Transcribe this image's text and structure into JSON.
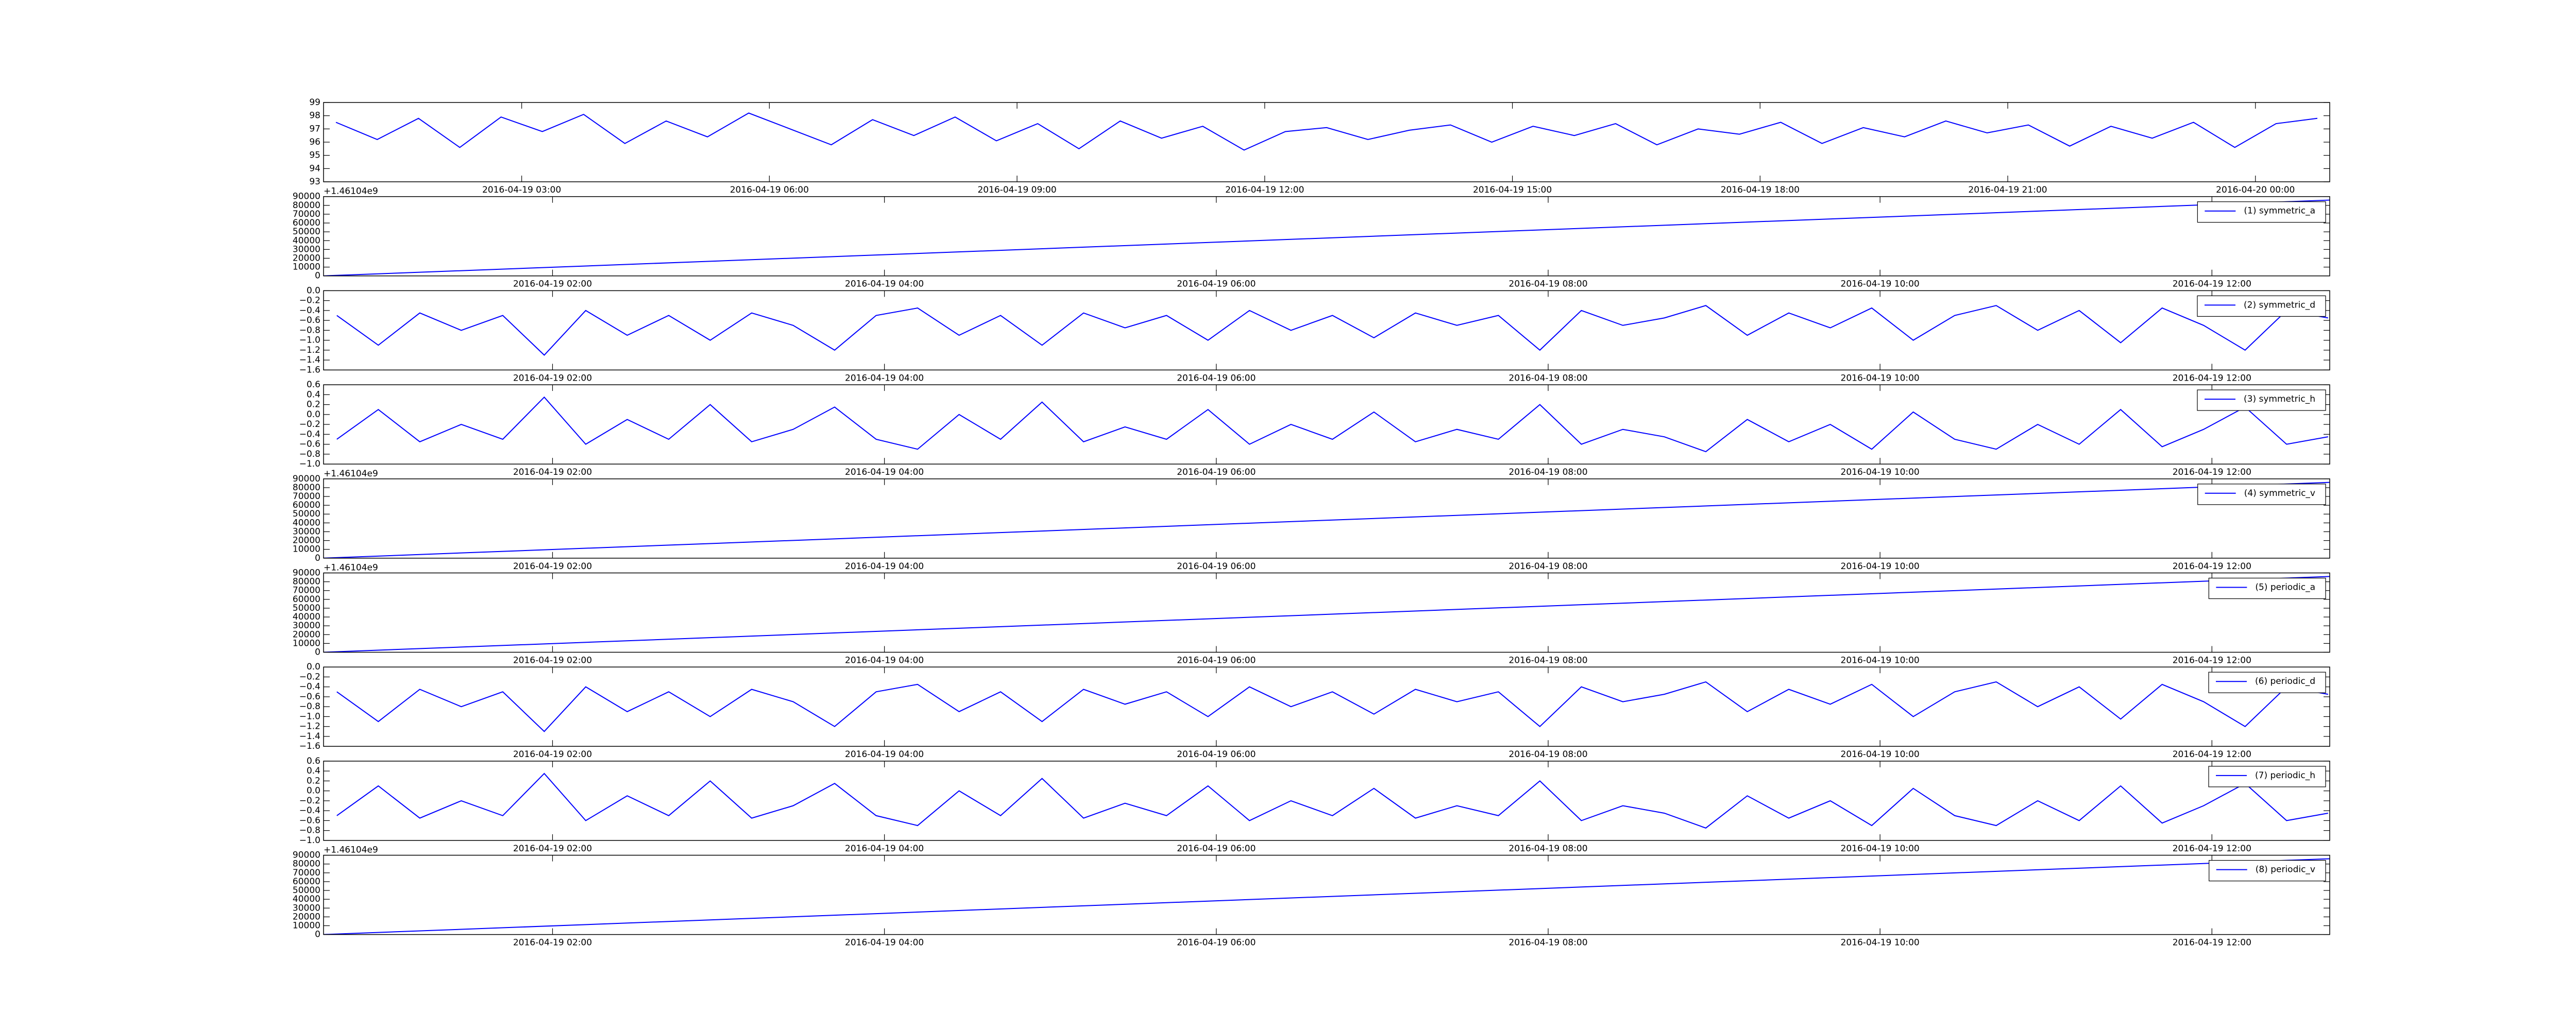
{
  "chart_data": [
    {
      "type": "line",
      "x": [
        0.75,
        1.25,
        1.75,
        2.25,
        2.75,
        3.25,
        3.75,
        4.25,
        4.75,
        5.25,
        5.75,
        6.25,
        6.75,
        7.25,
        7.75,
        8.25,
        8.75,
        9.25,
        9.75,
        10.25,
        10.75,
        11.25,
        11.75,
        12.25,
        12.75,
        13.25,
        13.75,
        14.25,
        14.75,
        15.25,
        15.75,
        16.25,
        16.75,
        17.25,
        17.75,
        18.25,
        18.75,
        19.25,
        19.75,
        20.25,
        20.75,
        21.25,
        21.75,
        22.25,
        22.75,
        23.25,
        23.75,
        24.25,
        24.75
      ],
      "series": [
        {
          "color": "#0000ff",
          "values": [
            97.5,
            96.2,
            97.8,
            95.6,
            97.9,
            96.8,
            98.1,
            95.9,
            97.6,
            96.4,
            98.2,
            97.0,
            95.8,
            97.7,
            96.5,
            97.9,
            96.1,
            97.4,
            95.5,
            97.6,
            96.3,
            97.2,
            95.4,
            96.8,
            97.1,
            96.2,
            96.9,
            97.3,
            96.0,
            97.2,
            96.5,
            97.4,
            95.8,
            97.0,
            96.6,
            97.5,
            95.9,
            97.1,
            96.4,
            97.6,
            96.7,
            97.3,
            95.7,
            97.2,
            96.3,
            97.5,
            95.6,
            97.4,
            97.8
          ]
        }
      ],
      "xlim": [
        0.6,
        24.9
      ],
      "ylim": [
        93,
        99
      ],
      "yticks": [
        93,
        94,
        95,
        96,
        97,
        98,
        99
      ],
      "xticks": [
        {
          "value": 3,
          "label": "2016-04-19 03:00"
        },
        {
          "value": 6,
          "label": "2016-04-19 06:00"
        },
        {
          "value": 9,
          "label": "2016-04-19 09:00"
        },
        {
          "value": 12,
          "label": "2016-04-19 12:00"
        },
        {
          "value": 15,
          "label": "2016-04-19 15:00"
        },
        {
          "value": 18,
          "label": "2016-04-19 18:00"
        },
        {
          "value": 21,
          "label": "2016-04-19 21:00"
        },
        {
          "value": 24,
          "label": "2016-04-20 00:00"
        }
      ]
    },
    {
      "type": "line",
      "offset_text": "+1.46104e9",
      "x": [
        0.62,
        12.71
      ],
      "series": [
        {
          "name": "(1) symmetric_a",
          "color": "#0000ff",
          "values": [
            0,
            86000
          ]
        }
      ],
      "xlim": [
        0.62,
        12.71
      ],
      "ylim": [
        0,
        90000
      ],
      "yticks": [
        0,
        10000,
        20000,
        30000,
        40000,
        50000,
        60000,
        70000,
        80000,
        90000
      ],
      "xticks": [
        {
          "value": 2,
          "label": "2016-04-19 02:00"
        },
        {
          "value": 4,
          "label": "2016-04-19 04:00"
        },
        {
          "value": 6,
          "label": "2016-04-19 06:00"
        },
        {
          "value": 8,
          "label": "2016-04-19 08:00"
        },
        {
          "value": 10,
          "label": "2016-04-19 10:00"
        },
        {
          "value": 12,
          "label": "2016-04-19 12:00"
        }
      ]
    },
    {
      "type": "line",
      "x": [
        0.7,
        0.95,
        1.2,
        1.45,
        1.7,
        1.95,
        2.2,
        2.45,
        2.7,
        2.95,
        3.2,
        3.45,
        3.7,
        3.95,
        4.2,
        4.45,
        4.7,
        4.95,
        5.2,
        5.45,
        5.7,
        5.95,
        6.2,
        6.45,
        6.7,
        6.95,
        7.2,
        7.45,
        7.7,
        7.95,
        8.2,
        8.45,
        8.7,
        8.95,
        9.2,
        9.45,
        9.7,
        9.95,
        10.2,
        10.45,
        10.7,
        10.95,
        11.2,
        11.45,
        11.7,
        11.95,
        12.2,
        12.45,
        12.7
      ],
      "series": [
        {
          "name": "(2) symmetric_d",
          "color": "#0000ff",
          "values": [
            -0.5,
            -1.1,
            -0.45,
            -0.8,
            -0.5,
            -1.3,
            -0.4,
            -0.9,
            -0.5,
            -1.0,
            -0.45,
            -0.7,
            -1.2,
            -0.5,
            -0.35,
            -0.9,
            -0.5,
            -1.1,
            -0.45,
            -0.75,
            -0.5,
            -1.0,
            -0.4,
            -0.8,
            -0.5,
            -0.95,
            -0.45,
            -0.7,
            -0.5,
            -1.2,
            -0.4,
            -0.7,
            -0.55,
            -0.3,
            -0.9,
            -0.45,
            -0.75,
            -0.35,
            -1.0,
            -0.5,
            -0.3,
            -0.8,
            -0.4,
            -1.05,
            -0.35,
            -0.7,
            -1.2,
            -0.4,
            -0.55
          ]
        }
      ],
      "xlim": [
        0.62,
        12.71
      ],
      "ylim": [
        -1.6,
        0
      ],
      "yticks": [
        {
          "value": -1.6,
          "label": "−1.6"
        },
        {
          "value": -1.4,
          "label": "−1.4"
        },
        {
          "value": -1.2,
          "label": "−1.2"
        },
        {
          "value": -1.0,
          "label": "−1.0"
        },
        {
          "value": -0.8,
          "label": "−0.8"
        },
        {
          "value": -0.6,
          "label": "−0.6"
        },
        {
          "value": -0.4,
          "label": "−0.4"
        },
        {
          "value": -0.2,
          "label": "−0.2"
        },
        {
          "value": 0,
          "label": "0.0"
        }
      ],
      "xticks": [
        {
          "value": 2,
          "label": "2016-04-19 02:00"
        },
        {
          "value": 4,
          "label": "2016-04-19 04:00"
        },
        {
          "value": 6,
          "label": "2016-04-19 06:00"
        },
        {
          "value": 8,
          "label": "2016-04-19 08:00"
        },
        {
          "value": 10,
          "label": "2016-04-19 10:00"
        },
        {
          "value": 12,
          "label": "2016-04-19 12:00"
        }
      ]
    },
    {
      "type": "line",
      "x": [
        0.7,
        0.95,
        1.2,
        1.45,
        1.7,
        1.95,
        2.2,
        2.45,
        2.7,
        2.95,
        3.2,
        3.45,
        3.7,
        3.95,
        4.2,
        4.45,
        4.7,
        4.95,
        5.2,
        5.45,
        5.7,
        5.95,
        6.2,
        6.45,
        6.7,
        6.95,
        7.2,
        7.45,
        7.7,
        7.95,
        8.2,
        8.45,
        8.7,
        8.95,
        9.2,
        9.45,
        9.7,
        9.95,
        10.2,
        10.45,
        10.7,
        10.95,
        11.2,
        11.45,
        11.7,
        11.95,
        12.2,
        12.45,
        12.7
      ],
      "series": [
        {
          "name": "(3) symmetric_h",
          "color": "#0000ff",
          "values": [
            -0.5,
            0.1,
            -0.55,
            -0.2,
            -0.5,
            0.35,
            -0.6,
            -0.1,
            -0.5,
            0.2,
            -0.55,
            -0.3,
            0.15,
            -0.5,
            -0.7,
            0.0,
            -0.5,
            0.25,
            -0.55,
            -0.25,
            -0.5,
            0.1,
            -0.6,
            -0.2,
            -0.5,
            0.05,
            -0.55,
            -0.3,
            -0.5,
            0.2,
            -0.6,
            -0.3,
            -0.45,
            -0.75,
            -0.1,
            -0.55,
            -0.2,
            -0.7,
            0.05,
            -0.5,
            -0.7,
            -0.2,
            -0.6,
            0.1,
            -0.65,
            -0.3,
            0.15,
            -0.6,
            -0.45
          ]
        }
      ],
      "xlim": [
        0.62,
        12.71
      ],
      "ylim": [
        -1.0,
        0.6
      ],
      "yticks": [
        {
          "value": -1.0,
          "label": "−1.0"
        },
        {
          "value": -0.8,
          "label": "−0.8"
        },
        {
          "value": -0.6,
          "label": "−0.6"
        },
        {
          "value": -0.4,
          "label": "−0.4"
        },
        {
          "value": -0.2,
          "label": "−0.2"
        },
        {
          "value": 0,
          "label": "0.0"
        },
        0.2,
        0.4,
        0.6
      ],
      "xticks": [
        {
          "value": 2,
          "label": "2016-04-19 02:00"
        },
        {
          "value": 4,
          "label": "2016-04-19 04:00"
        },
        {
          "value": 6,
          "label": "2016-04-19 06:00"
        },
        {
          "value": 8,
          "label": "2016-04-19 08:00"
        },
        {
          "value": 10,
          "label": "2016-04-19 10:00"
        },
        {
          "value": 12,
          "label": "2016-04-19 12:00"
        }
      ]
    },
    {
      "type": "line",
      "offset_text": "+1.46104e9",
      "x": [
        0.62,
        12.71
      ],
      "series": [
        {
          "name": "(4) symmetric_v",
          "color": "#0000ff",
          "values": [
            0,
            86000
          ]
        }
      ],
      "xlim": [
        0.62,
        12.71
      ],
      "ylim": [
        0,
        90000
      ],
      "yticks": [
        0,
        10000,
        20000,
        30000,
        40000,
        50000,
        60000,
        70000,
        80000,
        90000
      ],
      "xticks": [
        {
          "value": 2,
          "label": "2016-04-19 02:00"
        },
        {
          "value": 4,
          "label": "2016-04-19 04:00"
        },
        {
          "value": 6,
          "label": "2016-04-19 06:00"
        },
        {
          "value": 8,
          "label": "2016-04-19 08:00"
        },
        {
          "value": 10,
          "label": "2016-04-19 10:00"
        },
        {
          "value": 12,
          "label": "2016-04-19 12:00"
        }
      ]
    },
    {
      "type": "line",
      "offset_text": "+1.46104e9",
      "x": [
        0.62,
        12.71
      ],
      "series": [
        {
          "name": "(5) periodic_a",
          "color": "#0000ff",
          "values": [
            0,
            86000
          ]
        }
      ],
      "xlim": [
        0.62,
        12.71
      ],
      "ylim": [
        0,
        90000
      ],
      "yticks": [
        0,
        10000,
        20000,
        30000,
        40000,
        50000,
        60000,
        70000,
        80000,
        90000
      ],
      "xticks": [
        {
          "value": 2,
          "label": "2016-04-19 02:00"
        },
        {
          "value": 4,
          "label": "2016-04-19 04:00"
        },
        {
          "value": 6,
          "label": "2016-04-19 06:00"
        },
        {
          "value": 8,
          "label": "2016-04-19 08:00"
        },
        {
          "value": 10,
          "label": "2016-04-19 10:00"
        },
        {
          "value": 12,
          "label": "2016-04-19 12:00"
        }
      ]
    },
    {
      "type": "line",
      "x": [
        0.7,
        0.95,
        1.2,
        1.45,
        1.7,
        1.95,
        2.2,
        2.45,
        2.7,
        2.95,
        3.2,
        3.45,
        3.7,
        3.95,
        4.2,
        4.45,
        4.7,
        4.95,
        5.2,
        5.45,
        5.7,
        5.95,
        6.2,
        6.45,
        6.7,
        6.95,
        7.2,
        7.45,
        7.7,
        7.95,
        8.2,
        8.45,
        8.7,
        8.95,
        9.2,
        9.45,
        9.7,
        9.95,
        10.2,
        10.45,
        10.7,
        10.95,
        11.2,
        11.45,
        11.7,
        11.95,
        12.2,
        12.45,
        12.7
      ],
      "series": [
        {
          "name": "(6) periodic_d",
          "color": "#0000ff",
          "values": [
            -0.5,
            -1.1,
            -0.45,
            -0.8,
            -0.5,
            -1.3,
            -0.4,
            -0.9,
            -0.5,
            -1.0,
            -0.45,
            -0.7,
            -1.2,
            -0.5,
            -0.35,
            -0.9,
            -0.5,
            -1.1,
            -0.45,
            -0.75,
            -0.5,
            -1.0,
            -0.4,
            -0.8,
            -0.5,
            -0.95,
            -0.45,
            -0.7,
            -0.5,
            -1.2,
            -0.4,
            -0.7,
            -0.55,
            -0.3,
            -0.9,
            -0.45,
            -0.75,
            -0.35,
            -1.0,
            -0.5,
            -0.3,
            -0.8,
            -0.4,
            -1.05,
            -0.35,
            -0.7,
            -1.2,
            -0.4,
            -0.55
          ]
        }
      ],
      "xlim": [
        0.62,
        12.71
      ],
      "ylim": [
        -1.6,
        0
      ],
      "yticks": [
        {
          "value": -1.6,
          "label": "−1.6"
        },
        {
          "value": -1.4,
          "label": "−1.4"
        },
        {
          "value": -1.2,
          "label": "−1.2"
        },
        {
          "value": -1.0,
          "label": "−1.0"
        },
        {
          "value": -0.8,
          "label": "−0.8"
        },
        {
          "value": -0.6,
          "label": "−0.6"
        },
        {
          "value": -0.4,
          "label": "−0.4"
        },
        {
          "value": -0.2,
          "label": "−0.2"
        },
        {
          "value": 0,
          "label": "0.0"
        }
      ],
      "xticks": [
        {
          "value": 2,
          "label": "2016-04-19 02:00"
        },
        {
          "value": 4,
          "label": "2016-04-19 04:00"
        },
        {
          "value": 6,
          "label": "2016-04-19 06:00"
        },
        {
          "value": 8,
          "label": "2016-04-19 08:00"
        },
        {
          "value": 10,
          "label": "2016-04-19 10:00"
        },
        {
          "value": 12,
          "label": "2016-04-19 12:00"
        }
      ]
    },
    {
      "type": "line",
      "x": [
        0.7,
        0.95,
        1.2,
        1.45,
        1.7,
        1.95,
        2.2,
        2.45,
        2.7,
        2.95,
        3.2,
        3.45,
        3.7,
        3.95,
        4.2,
        4.45,
        4.7,
        4.95,
        5.2,
        5.45,
        5.7,
        5.95,
        6.2,
        6.45,
        6.7,
        6.95,
        7.2,
        7.45,
        7.7,
        7.95,
        8.2,
        8.45,
        8.7,
        8.95,
        9.2,
        9.45,
        9.7,
        9.95,
        10.2,
        10.45,
        10.7,
        10.95,
        11.2,
        11.45,
        11.7,
        11.95,
        12.2,
        12.45,
        12.7
      ],
      "series": [
        {
          "name": "(7) periodic_h",
          "color": "#0000ff",
          "values": [
            -0.5,
            0.1,
            -0.55,
            -0.2,
            -0.5,
            0.35,
            -0.6,
            -0.1,
            -0.5,
            0.2,
            -0.55,
            -0.3,
            0.15,
            -0.5,
            -0.7,
            0.0,
            -0.5,
            0.25,
            -0.55,
            -0.25,
            -0.5,
            0.1,
            -0.6,
            -0.2,
            -0.5,
            0.05,
            -0.55,
            -0.3,
            -0.5,
            0.2,
            -0.6,
            -0.3,
            -0.45,
            -0.75,
            -0.1,
            -0.55,
            -0.2,
            -0.7,
            0.05,
            -0.5,
            -0.7,
            -0.2,
            -0.6,
            0.1,
            -0.65,
            -0.3,
            0.15,
            -0.6,
            -0.45
          ]
        }
      ],
      "xlim": [
        0.62,
        12.71
      ],
      "ylim": [
        -1.0,
        0.6
      ],
      "yticks": [
        {
          "value": -1.0,
          "label": "−1.0"
        },
        {
          "value": -0.8,
          "label": "−0.8"
        },
        {
          "value": -0.6,
          "label": "−0.6"
        },
        {
          "value": -0.4,
          "label": "−0.4"
        },
        {
          "value": -0.2,
          "label": "−0.2"
        },
        {
          "value": 0,
          "label": "0.0"
        },
        0.2,
        0.4,
        0.6
      ],
      "xticks": [
        {
          "value": 2,
          "label": "2016-04-19 02:00"
        },
        {
          "value": 4,
          "label": "2016-04-19 04:00"
        },
        {
          "value": 6,
          "label": "2016-04-19 06:00"
        },
        {
          "value": 8,
          "label": "2016-04-19 08:00"
        },
        {
          "value": 10,
          "label": "2016-04-19 10:00"
        },
        {
          "value": 12,
          "label": "2016-04-19 12:00"
        }
      ]
    },
    {
      "type": "line",
      "offset_text": "+1.46104e9",
      "x": [
        0.62,
        12.71
      ],
      "series": [
        {
          "name": "(8) periodic_v",
          "color": "#0000ff",
          "values": [
            0,
            86000
          ]
        }
      ],
      "xlim": [
        0.62,
        12.71
      ],
      "ylim": [
        0,
        90000
      ],
      "yticks": [
        0,
        10000,
        20000,
        30000,
        40000,
        50000,
        60000,
        70000,
        80000,
        90000
      ],
      "xticks": [
        {
          "value": 2,
          "label": "2016-04-19 02:00"
        },
        {
          "value": 4,
          "label": "2016-04-19 04:00"
        },
        {
          "value": 6,
          "label": "2016-04-19 06:00"
        },
        {
          "value": 8,
          "label": "2016-04-19 08:00"
        },
        {
          "value": 10,
          "label": "2016-04-19 10:00"
        },
        {
          "value": 12,
          "label": "2016-04-19 12:00"
        }
      ]
    }
  ]
}
